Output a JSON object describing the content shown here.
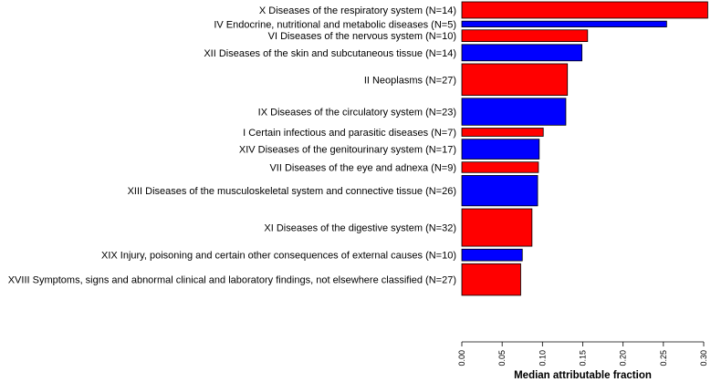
{
  "chart_data": {
    "type": "bar",
    "orientation": "horizontal",
    "title": "",
    "xlabel": "Median attributable fraction",
    "ylabel": "",
    "xlim": [
      0,
      0.3
    ],
    "xticks": [
      0.0,
      0.05,
      0.1,
      0.15,
      0.2,
      0.25,
      0.3
    ],
    "xtick_labels": [
      "0.00",
      "0.05",
      "0.10",
      "0.15",
      "0.20",
      "0.25",
      "0.30"
    ],
    "grid": false,
    "note": "bar thickness is proportional to N",
    "categories": [
      "X Diseases of the respiratory system (N=14)",
      "IV Endocrine, nutritional and metabolic diseases (N=5)",
      "VI Diseases of the nervous system (N=10)",
      "XII Diseases of the skin and subcutaneous tissue (N=14)",
      "II Neoplasms (N=27)",
      "IX Diseases of the circulatory system (N=23)",
      "I Certain infectious and parasitic diseases (N=7)",
      "XIV Diseases of the genitourinary system (N=17)",
      "VII Diseases of the eye and adnexa (N=9)",
      "XIII Diseases of the musculoskeletal system and connective tissue (N=26)",
      "XI Diseases of the digestive system (N=32)",
      "XIX Injury, poisoning and certain other consequences of external causes (N=10)",
      "XVIII Symptoms, signs and abnormal clinical and laboratory findings, not elsewhere classified (N=27)"
    ],
    "n": [
      14,
      5,
      10,
      14,
      27,
      23,
      7,
      17,
      9,
      26,
      32,
      10,
      27
    ],
    "values": [
      0.305,
      0.254,
      0.156,
      0.149,
      0.131,
      0.129,
      0.101,
      0.096,
      0.095,
      0.094,
      0.087,
      0.075,
      0.073
    ],
    "colors": [
      "#ff0000",
      "#0000ff",
      "#ff0000",
      "#0000ff",
      "#ff0000",
      "#0000ff",
      "#ff0000",
      "#0000ff",
      "#ff0000",
      "#0000ff",
      "#ff0000",
      "#0000ff",
      "#ff0000"
    ]
  }
}
